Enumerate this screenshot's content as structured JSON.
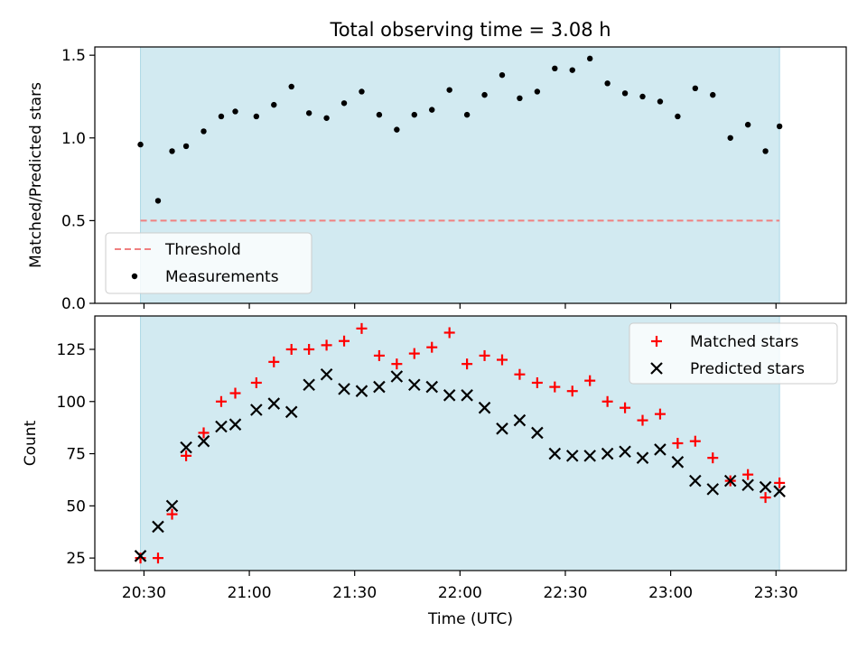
{
  "chart_data": [
    {
      "type": "scatter",
      "title": "Total observing time = 3.08 h",
      "xlabel": "",
      "ylabel": "Matched/Predicted stars",
      "ylim": [
        0,
        1.55
      ],
      "yticks": [
        "0.0",
        "0.5",
        "1.0",
        "1.5"
      ],
      "ytick_values": [
        0,
        0.5,
        1.0,
        1.5
      ],
      "xlim": [
        "20:16",
        "23:50"
      ],
      "shaded_span": [
        "20:29",
        "23:31"
      ],
      "shade_color": "#add8e6",
      "threshold": {
        "name": "Threshold",
        "y": 0.5,
        "color": "#f08080",
        "style": "dashed"
      },
      "legend": {
        "placement": "lower-left",
        "entries": [
          "Threshold",
          "Measurements"
        ]
      },
      "series": [
        {
          "name": "Measurements",
          "marker": "dot",
          "color": "#000000",
          "x": [
            "20:29",
            "20:34",
            "20:38",
            "20:42",
            "20:47",
            "20:52",
            "20:56",
            "21:02",
            "21:07",
            "21:12",
            "21:17",
            "21:22",
            "21:27",
            "21:32",
            "21:37",
            "21:42",
            "21:47",
            "21:52",
            "21:57",
            "22:02",
            "22:07",
            "22:12",
            "22:17",
            "22:22",
            "22:27",
            "22:32",
            "22:37",
            "22:42",
            "22:47",
            "22:52",
            "22:57",
            "23:02",
            "23:07",
            "23:12",
            "23:17",
            "23:22",
            "23:27",
            "23:31"
          ],
          "y": [
            0.96,
            0.62,
            0.92,
            0.95,
            1.04,
            1.13,
            1.16,
            1.13,
            1.2,
            1.31,
            1.15,
            1.12,
            1.21,
            1.28,
            1.14,
            1.05,
            1.14,
            1.17,
            1.29,
            1.14,
            1.26,
            1.38,
            1.24,
            1.28,
            1.42,
            1.41,
            1.48,
            1.33,
            1.27,
            1.25,
            1.22,
            1.13,
            1.3,
            1.26,
            1.0,
            1.08,
            0.92,
            1.07
          ]
        }
      ]
    },
    {
      "type": "scatter",
      "title": "",
      "xlabel": "Time (UTC)",
      "ylabel": "Count",
      "ylim": [
        19,
        141
      ],
      "yticks": [
        "25",
        "50",
        "75",
        "100",
        "125"
      ],
      "ytick_values": [
        25,
        50,
        75,
        100,
        125
      ],
      "xlim": [
        "20:16",
        "23:50"
      ],
      "xticks": [
        "20:30",
        "21:00",
        "21:30",
        "22:00",
        "22:30",
        "23:00",
        "23:30"
      ],
      "shaded_span": [
        "20:29",
        "23:31"
      ],
      "shade_color": "#add8e6",
      "legend": {
        "placement": "top-right",
        "entries": [
          "Matched stars",
          "Predicted stars"
        ]
      },
      "series": [
        {
          "name": "Matched stars",
          "marker": "plus",
          "color": "#ff0000",
          "x": [
            "20:29",
            "20:34",
            "20:38",
            "20:42",
            "20:47",
            "20:52",
            "20:56",
            "21:02",
            "21:07",
            "21:12",
            "21:17",
            "21:22",
            "21:27",
            "21:32",
            "21:37",
            "21:42",
            "21:47",
            "21:52",
            "21:57",
            "22:02",
            "22:07",
            "22:12",
            "22:17",
            "22:22",
            "22:27",
            "22:32",
            "22:37",
            "22:42",
            "22:47",
            "22:52",
            "22:57",
            "23:02",
            "23:07",
            "23:12",
            "23:17",
            "23:22",
            "23:27",
            "23:31"
          ],
          "y": [
            25,
            25,
            46,
            74,
            85,
            100,
            104,
            109,
            119,
            125,
            125,
            127,
            129,
            135,
            122,
            118,
            123,
            126,
            133,
            118,
            122,
            120,
            113,
            109,
            107,
            105,
            110,
            100,
            97,
            91,
            94,
            80,
            81,
            73,
            62,
            65,
            54,
            61
          ]
        },
        {
          "name": "Predicted stars",
          "marker": "x",
          "color": "#000000",
          "x": [
            "20:29",
            "20:34",
            "20:38",
            "20:42",
            "20:47",
            "20:52",
            "20:56",
            "21:02",
            "21:07",
            "21:12",
            "21:17",
            "21:22",
            "21:27",
            "21:32",
            "21:37",
            "21:42",
            "21:47",
            "21:52",
            "21:57",
            "22:02",
            "22:07",
            "22:12",
            "22:17",
            "22:22",
            "22:27",
            "22:32",
            "22:37",
            "22:42",
            "22:47",
            "22:52",
            "22:57",
            "23:02",
            "23:07",
            "23:12",
            "23:17",
            "23:22",
            "23:27",
            "23:31"
          ],
          "y": [
            26,
            40,
            50,
            78,
            81,
            88,
            89,
            96,
            99,
            95,
            108,
            113,
            106,
            105,
            107,
            112,
            108,
            107,
            103,
            103,
            97,
            87,
            91,
            85,
            75,
            74,
            74,
            75,
            76,
            73,
            77,
            71,
            62,
            58,
            62,
            60,
            59,
            57
          ]
        }
      ]
    }
  ]
}
